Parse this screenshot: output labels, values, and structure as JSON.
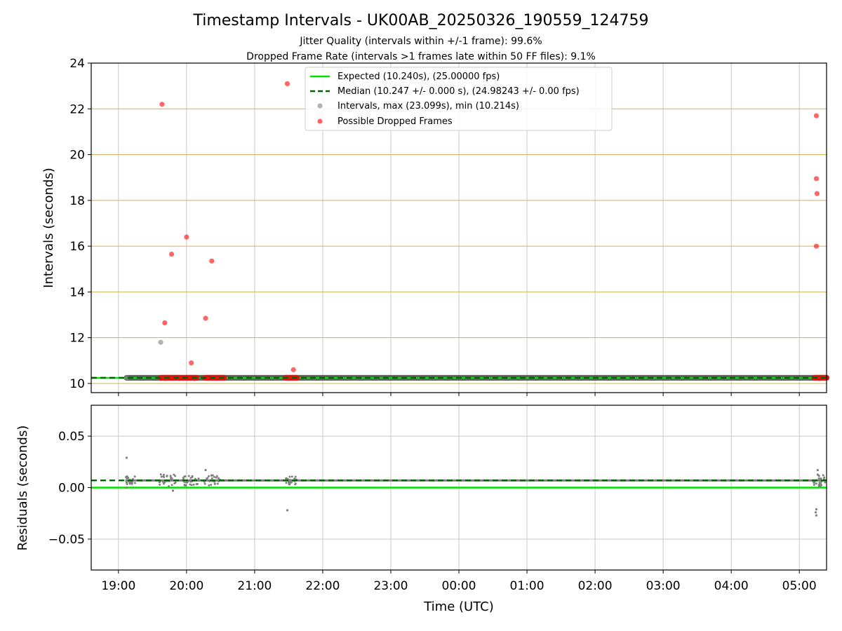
{
  "chart_data": {
    "title": "Timestamp Intervals - UK00AB_20250326_190559_124759",
    "subtitles": [
      "Jitter Quality (intervals within +/-1 frame): 99.6%",
      "Dropped Frame Rate (intervals >1 frames late within 50 FF files): 9.1%"
    ],
    "xlabel": "Time (UTC)",
    "xticks": [
      "19:00",
      "20:00",
      "21:00",
      "22:00",
      "23:00",
      "00:00",
      "01:00",
      "02:00",
      "03:00",
      "04:00",
      "05:00"
    ],
    "xlim_hours": [
      18.6,
      29.4
    ],
    "colors": {
      "expected": "#00e000",
      "median": "#006400",
      "intervals": "#808080",
      "dropped": "#ff0000",
      "ygrid": "#d4b15a",
      "xgrid": "#c8c8c8"
    },
    "top_panel": {
      "type": "scatter",
      "ylabel": "Intervals (seconds)",
      "ylim": [
        9.6,
        24
      ],
      "yticks": [
        "10",
        "12",
        "14",
        "16",
        "18",
        "20",
        "22",
        "24"
      ],
      "grid": "y (gold) and x (gray)",
      "legend": {
        "position": "upper center",
        "entries": [
          "Expected (10.240s), (25.00000 fps)",
          "Median (10.247 +/- 0.000 s), (24.98243 +/- 0.00 fps)",
          "Intervals, max (23.099s), min (10.214s)",
          "Possible Dropped Frames"
        ]
      },
      "expected_interval": 10.24,
      "median_interval": 10.247,
      "interval_band": {
        "x_start": 19.12,
        "x_end": 29.4,
        "y": 10.247
      },
      "gray_points": [
        {
          "x": 19.12,
          "y": 10.25
        },
        {
          "x": 19.62,
          "y": 11.8
        }
      ],
      "dropped_points": [
        {
          "x": 19.64,
          "y": 22.2
        },
        {
          "x": 19.68,
          "y": 12.65
        },
        {
          "x": 19.78,
          "y": 15.65
        },
        {
          "x": 20.0,
          "y": 16.4
        },
        {
          "x": 20.07,
          "y": 10.9
        },
        {
          "x": 20.28,
          "y": 12.85
        },
        {
          "x": 20.37,
          "y": 15.35
        },
        {
          "x": 21.48,
          "y": 23.1
        },
        {
          "x": 21.57,
          "y": 10.6
        },
        {
          "x": 29.25,
          "y": 21.7
        },
        {
          "x": 29.25,
          "y": 18.95
        },
        {
          "x": 29.26,
          "y": 18.3
        },
        {
          "x": 29.25,
          "y": 16.0
        }
      ],
      "dropped_bands": [
        {
          "x_start": 19.62,
          "x_end": 19.95,
          "y": 10.25
        },
        {
          "x_start": 19.98,
          "x_end": 20.15,
          "y": 10.25
        },
        {
          "x_start": 20.27,
          "x_end": 20.55,
          "y": 10.25
        },
        {
          "x_start": 21.45,
          "x_end": 21.62,
          "y": 10.25
        },
        {
          "x_start": 29.22,
          "x_end": 29.4,
          "y": 10.25
        }
      ]
    },
    "bottom_panel": {
      "type": "scatter",
      "ylabel": "Residuals (seconds)",
      "ylim": [
        -0.08,
        0.08
      ],
      "yticks": [
        "0.05",
        "0.00",
        "−0.05"
      ],
      "ytick_values": [
        0.05,
        0.0,
        -0.05
      ],
      "expected_residual": 0.0,
      "median_residual": 0.007,
      "outliers": [
        {
          "x": 19.12,
          "y": 0.029
        },
        {
          "x": 19.12,
          "y": 0.0
        },
        {
          "x": 19.8,
          "y": -0.003
        },
        {
          "x": 20.28,
          "y": 0.017
        },
        {
          "x": 21.48,
          "y": -0.022
        },
        {
          "x": 29.25,
          "y": -0.021
        },
        {
          "x": 29.24,
          "y": -0.024
        },
        {
          "x": 29.25,
          "y": -0.027
        },
        {
          "x": 29.27,
          "y": 0.017
        }
      ],
      "clusters": [
        {
          "x_start": 19.1,
          "x_end": 19.25,
          "spread": 0.004
        },
        {
          "x_start": 19.6,
          "x_end": 19.85,
          "spread": 0.006
        },
        {
          "x_start": 19.95,
          "x_end": 20.2,
          "spread": 0.005
        },
        {
          "x_start": 20.25,
          "x_end": 20.5,
          "spread": 0.005
        },
        {
          "x_start": 21.45,
          "x_end": 21.62,
          "spread": 0.004
        },
        {
          "x_start": 29.2,
          "x_end": 29.4,
          "spread": 0.006
        }
      ]
    }
  }
}
